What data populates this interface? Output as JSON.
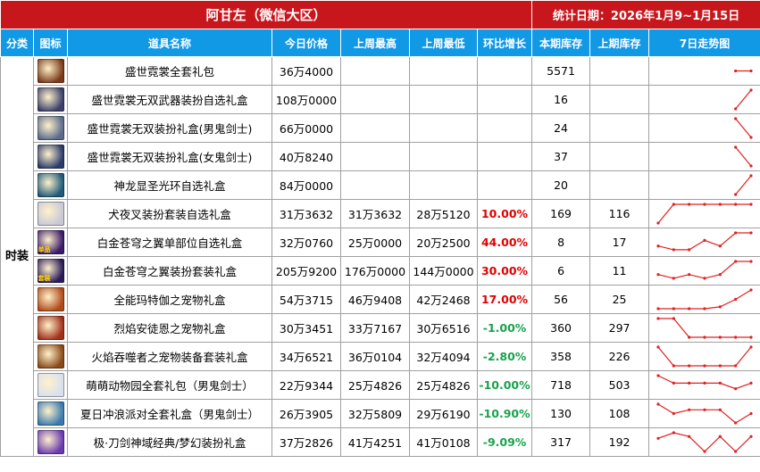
{
  "header": {
    "server_title": "阿甘左（微信大区）",
    "period": "统计日期：2026年1月9~1月15日"
  },
  "columns": [
    "分类",
    "图标",
    "道具名称",
    "今日价格",
    "上周最高",
    "上周最低",
    "环比增长",
    "本期库存",
    "上期库存",
    "7日走势图"
  ],
  "category": "时装",
  "rows": [
    {
      "name": "盛世霓裳全套礼包",
      "icon": "gift-box-icon",
      "color": "#7a3a1a",
      "tag": "",
      "price": "36万4000",
      "high": "",
      "low": "",
      "growth": "",
      "dir": "",
      "stock": "5571",
      "prev": "",
      "trend": [
        null,
        null,
        null,
        null,
        null,
        0.5,
        0.5
      ]
    },
    {
      "name": "盛世霓裳无双武器装扮自选礼盒",
      "icon": "weapon-chest-icon",
      "color": "#3b3f6a",
      "tag": "",
      "price": "108万0000",
      "high": "",
      "low": "",
      "growth": "",
      "dir": "",
      "stock": "16",
      "prev": "",
      "trend": [
        null,
        null,
        null,
        null,
        null,
        0.0,
        1.0
      ]
    },
    {
      "name": "盛世霓裳无双装扮礼盒(男鬼剑士)",
      "icon": "male-swordsman-icon",
      "color": "#5a6a8a",
      "tag": "",
      "price": "66万0000",
      "high": "",
      "low": "",
      "growth": "",
      "dir": "",
      "stock": "24",
      "prev": "",
      "trend": [
        null,
        null,
        null,
        null,
        null,
        1.0,
        0.0
      ]
    },
    {
      "name": "盛世霓裳无双装扮礼盒(女鬼剑士)",
      "icon": "female-swordsman-icon",
      "color": "#2a3a6a",
      "tag": "",
      "price": "40万8240",
      "high": "",
      "low": "",
      "growth": "",
      "dir": "",
      "stock": "37",
      "prev": "",
      "trend": [
        null,
        null,
        null,
        null,
        null,
        1.0,
        0.0
      ]
    },
    {
      "name": "神龙显圣光环自选礼盒",
      "icon": "dragon-aura-icon",
      "color": "#1f5a7a",
      "tag": "",
      "price": "84万0000",
      "high": "",
      "low": "",
      "growth": "",
      "dir": "",
      "stock": "20",
      "prev": "",
      "trend": [
        null,
        null,
        null,
        null,
        null,
        0.0,
        1.0
      ]
    },
    {
      "name": "犬夜叉装扮套装自选礼盒",
      "icon": "inuyasha-icon",
      "color": "#c8c8d8",
      "tag": "",
      "price": "31万3632",
      "high": "31万3632",
      "low": "28万5120",
      "growth": "10.00%",
      "dir": "pos",
      "stock": "169",
      "prev": "116",
      "trend": [
        0.0,
        1.0,
        1.0,
        1.0,
        1.0,
        1.0,
        1.0
      ]
    },
    {
      "name": "白金苍穹之翼单部位自选礼盒",
      "icon": "platinum-wing-part-icon",
      "color": "#3a1a6a",
      "tag": "单品",
      "price": "32万0760",
      "high": "25万0000",
      "low": "20万2500",
      "growth": "44.00%",
      "dir": "pos",
      "stock": "8",
      "prev": "17",
      "trend": [
        0.3,
        0.1,
        0.1,
        0.6,
        0.3,
        1.0,
        1.0
      ]
    },
    {
      "name": "白金苍穹之翼装扮套装礼盒",
      "icon": "platinum-wing-set-icon",
      "color": "#2a1a5a",
      "tag": "套装",
      "price": "205万9200",
      "high": "176万0000",
      "low": "144万0000",
      "growth": "30.00%",
      "dir": "pos",
      "stock": "6",
      "prev": "11",
      "trend": [
        0.3,
        0.1,
        0.3,
        0.1,
        0.3,
        1.0,
        1.0
      ]
    },
    {
      "name": "全能玛特伽之宠物礼盒",
      "icon": "pet-chest-mattega-icon",
      "color": "#b04a1a",
      "tag": "",
      "price": "54万3715",
      "high": "46万9408",
      "low": "42万2468",
      "growth": "17.00%",
      "dir": "pos",
      "stock": "56",
      "prev": "25",
      "trend": [
        0.0,
        0.0,
        0.0,
        0.0,
        0.1,
        0.5,
        1.0
      ]
    },
    {
      "name": "烈焰安徒恩之宠物礼盒",
      "icon": "pet-chest-anton-icon",
      "color": "#a0301a",
      "tag": "",
      "price": "30万3451",
      "high": "33万7167",
      "low": "30万6516",
      "growth": "-1.00%",
      "dir": "neg",
      "stock": "360",
      "prev": "297",
      "trend": [
        1.0,
        1.0,
        0.0,
        0.0,
        0.0,
        0.0,
        0.0
      ]
    },
    {
      "name": "火焰吞噬者之宠物装备套装礼盒",
      "icon": "pet-equip-chest-icon",
      "color": "#8a4a1a",
      "tag": "",
      "price": "34万6521",
      "high": "36万0104",
      "low": "32万4094",
      "growth": "-2.80%",
      "dir": "neg",
      "stock": "358",
      "prev": "226",
      "trend": [
        1.0,
        0.0,
        0.0,
        0.0,
        0.0,
        0.0,
        1.0
      ]
    },
    {
      "name": "萌萌动物园全套礼包（男鬼剑士）",
      "icon": "zoo-costume-icon",
      "color": "#d8e0f0",
      "tag": "",
      "price": "22万9344",
      "high": "25万4826",
      "low": "25万4826",
      "growth": "-10.00%",
      "dir": "neg",
      "stock": "718",
      "prev": "503",
      "trend": [
        1.0,
        0.6,
        0.6,
        0.6,
        0.6,
        0.3,
        0.6
      ]
    },
    {
      "name": "夏日冲浪派对全套礼盒（男鬼剑士）",
      "icon": "summer-surf-icon",
      "color": "#3a7ab0",
      "tag": "",
      "price": "26万3905",
      "high": "32万5809",
      "low": "29万6190",
      "growth": "-10.90%",
      "dir": "neg",
      "stock": "130",
      "prev": "108",
      "trend": [
        1.0,
        0.5,
        0.7,
        0.7,
        0.7,
        0.0,
        0.5
      ]
    },
    {
      "name": "极·刀剑神域经典/梦幻装扮礼盒",
      "icon": "sword-art-chest-icon",
      "color": "#6a3ab0",
      "tag": "",
      "price": "37万2826",
      "high": "41万4251",
      "low": "41万0108",
      "growth": "-9.09%",
      "dir": "neg",
      "stock": "317",
      "prev": "192",
      "trend": [
        0.7,
        1.0,
        0.8,
        0.0,
        0.8,
        0.0,
        0.8
      ]
    }
  ]
}
